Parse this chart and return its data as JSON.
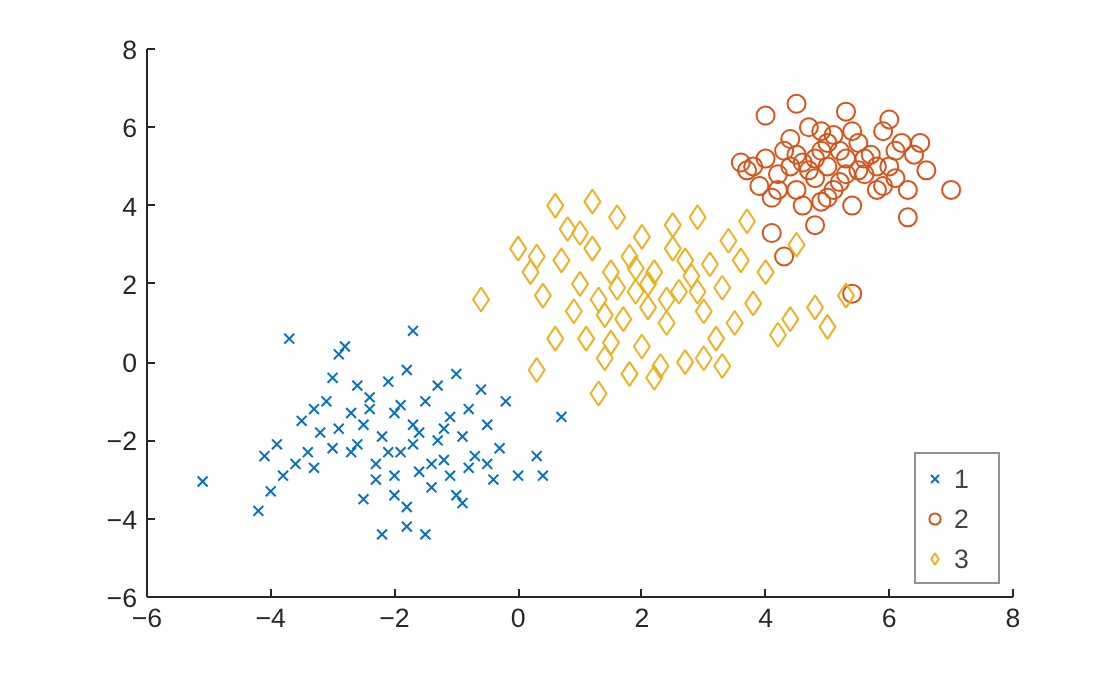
{
  "chart_data": {
    "type": "scatter",
    "xlim": [
      -6,
      8
    ],
    "ylim": [
      -6,
      8
    ],
    "xticks": [
      -6,
      -4,
      -2,
      0,
      2,
      4,
      6,
      8
    ],
    "yticks": [
      -6,
      -4,
      -2,
      0,
      2,
      4,
      6,
      8
    ],
    "grid": false,
    "legend": "bottom right",
    "series": [
      {
        "name": "1",
        "color": "#0072bd",
        "marker": "cross",
        "x": [
          -5.1,
          -4.2,
          -4.0,
          -4.1,
          -3.9,
          -3.8,
          -3.6,
          -3.5,
          -3.4,
          -3.3,
          -3.2,
          -3.1,
          -3.0,
          -2.9,
          -2.8,
          -3.7,
          -2.7,
          -2.6,
          -2.5,
          -2.5,
          -2.4,
          -2.3,
          -2.2,
          -2.2,
          -2.1,
          -2.0,
          -2.0,
          -1.9,
          -1.8,
          -1.8,
          -1.7,
          -1.7,
          -1.6,
          -1.5,
          -1.5,
          -1.4,
          -1.3,
          -1.3,
          -1.2,
          -1.1,
          -1.0,
          -1.0,
          -0.9,
          -0.8,
          -0.8,
          -0.7,
          -0.6,
          -0.5,
          -0.4,
          -0.3,
          -0.2,
          0.0,
          0.3,
          0.4,
          0.7,
          -2.9,
          -2.7,
          -2.4,
          -2.1,
          -1.9,
          -1.6,
          -1.4,
          -1.2,
          -2.3,
          -3.0,
          -1.1,
          -0.5,
          -2.6,
          -3.3,
          -1.7,
          -2.0,
          -1.8,
          -0.9
        ],
        "values": [
          -3.05,
          -3.8,
          -3.3,
          -2.4,
          -2.1,
          -2.9,
          -2.6,
          -1.5,
          -2.3,
          -2.7,
          -1.8,
          -1.0,
          -0.4,
          0.2,
          0.4,
          0.6,
          -1.3,
          -2.1,
          -1.6,
          -3.5,
          -0.9,
          -2.6,
          -4.4,
          -1.9,
          -0.5,
          -2.9,
          -1.3,
          -2.3,
          -3.7,
          -0.2,
          0.8,
          -1.6,
          -2.8,
          -4.4,
          -1.0,
          -3.2,
          -2.0,
          -0.6,
          -2.5,
          -1.4,
          -3.4,
          -0.3,
          -1.9,
          -2.7,
          -1.2,
          -2.4,
          -0.7,
          -1.6,
          -3.0,
          -2.2,
          -1.0,
          -2.9,
          -2.4,
          -2.9,
          -1.4,
          -1.7,
          -2.3,
          -1.2,
          -2.3,
          -1.1,
          -1.8,
          -2.6,
          -1.7,
          -3.0,
          -2.2,
          -2.9,
          -2.6,
          -0.6,
          -1.2,
          -2.1,
          -3.4,
          -4.2,
          -3.6
        ]
      },
      {
        "name": "2",
        "color": "#d95319",
        "marker": "circle",
        "x": [
          4.5,
          4.0,
          5.3,
          6.0,
          3.6,
          3.8,
          3.9,
          4.1,
          4.2,
          4.3,
          4.4,
          4.5,
          4.6,
          4.7,
          4.8,
          4.9,
          5.0,
          5.0,
          5.1,
          5.2,
          5.3,
          5.4,
          5.5,
          5.6,
          5.7,
          5.8,
          5.9,
          6.0,
          6.1,
          6.2,
          6.3,
          6.3,
          6.5,
          7.0,
          6.4,
          4.1,
          4.3,
          5.4,
          4.8,
          4.6,
          4.4,
          4.9,
          5.2,
          4.7,
          5.5,
          5.1,
          4.5,
          5.6,
          4.8,
          5.3,
          3.7,
          6.1,
          5.8,
          4.2,
          6.6,
          4.0,
          5.9,
          4.9,
          5.0,
          5.4
        ],
        "values": [
          6.6,
          6.3,
          6.4,
          6.2,
          5.1,
          5.0,
          4.5,
          4.2,
          4.8,
          5.4,
          5.7,
          4.4,
          5.1,
          6.0,
          4.7,
          5.4,
          5.0,
          4.2,
          5.8,
          4.6,
          5.2,
          4.0,
          5.6,
          4.8,
          5.3,
          4.4,
          5.9,
          5.0,
          4.7,
          5.6,
          3.7,
          4.4,
          5.6,
          4.4,
          5.3,
          3.3,
          2.7,
          1.75,
          3.5,
          4.0,
          5.0,
          5.9,
          5.4,
          4.9,
          4.9,
          4.4,
          5.3,
          5.2,
          5.2,
          4.8,
          4.9,
          5.4,
          5.0,
          4.4,
          4.9,
          5.2,
          4.5,
          4.1,
          5.6,
          5.9
        ]
      },
      {
        "name": "3",
        "color": "#edb120",
        "marker": "diamond",
        "x": [
          -0.6,
          0.3,
          1.3,
          0.6,
          1.2,
          0.0,
          0.2,
          0.4,
          0.7,
          0.8,
          0.9,
          1.0,
          1.1,
          1.2,
          1.3,
          1.4,
          1.5,
          1.6,
          1.7,
          1.8,
          1.8,
          1.9,
          2.0,
          2.0,
          2.1,
          2.2,
          2.3,
          2.4,
          2.5,
          2.6,
          2.7,
          2.8,
          2.9,
          3.0,
          3.1,
          3.2,
          3.3,
          3.4,
          3.5,
          3.6,
          3.8,
          4.0,
          4.4,
          4.8,
          5.0,
          5.3,
          4.5,
          1.6,
          2.1,
          1.9,
          2.4,
          1.4,
          2.7,
          0.6,
          3.0,
          2.2,
          1.0,
          3.7,
          2.9,
          1.5,
          0.3,
          2.5,
          4.2,
          3.3
        ],
        "values": [
          1.6,
          -0.2,
          -0.8,
          4.0,
          4.1,
          2.9,
          2.3,
          1.7,
          2.6,
          3.4,
          1.3,
          2.0,
          0.6,
          2.9,
          1.6,
          0.1,
          2.3,
          3.7,
          1.1,
          2.7,
          -0.3,
          1.8,
          0.4,
          3.2,
          1.4,
          2.3,
          -0.1,
          1.0,
          2.9,
          1.8,
          0.0,
          2.2,
          3.7,
          1.3,
          2.5,
          0.6,
          1.9,
          3.1,
          1.0,
          2.6,
          1.5,
          2.3,
          1.1,
          1.4,
          0.9,
          1.7,
          3.0,
          1.9,
          2.0,
          2.4,
          1.6,
          1.2,
          2.6,
          0.6,
          0.1,
          -0.4,
          3.3,
          3.6,
          1.8,
          0.5,
          2.7,
          3.5,
          0.7,
          -0.1
        ]
      }
    ]
  }
}
